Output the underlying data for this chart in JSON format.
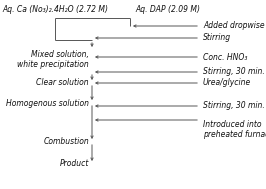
{
  "bg_color": "#ffffff",
  "left_source": "Aq. Ca (No₃)₂.4H₂O (2.72 M)",
  "right_source": "Aq. DAP (2.09 M)",
  "main_steps": [
    "Mixed solution,\nwhite precipitation",
    "Clear solution",
    "Homogenous solution",
    "Combustion",
    "Product"
  ],
  "right_labels": [
    "Added dropwise",
    "Stirring",
    "Conc. HNO₃",
    "Stirring, 30 min.",
    "Urea/glycine",
    "Stirring, 30 min.",
    "Introduced into\npreheated furnace"
  ],
  "figsize": [
    2.66,
    1.89
  ],
  "dpi": 100,
  "font_size": 5.5,
  "line_color": "#555555",
  "text_color": "#111111",
  "line_width": 0.7
}
